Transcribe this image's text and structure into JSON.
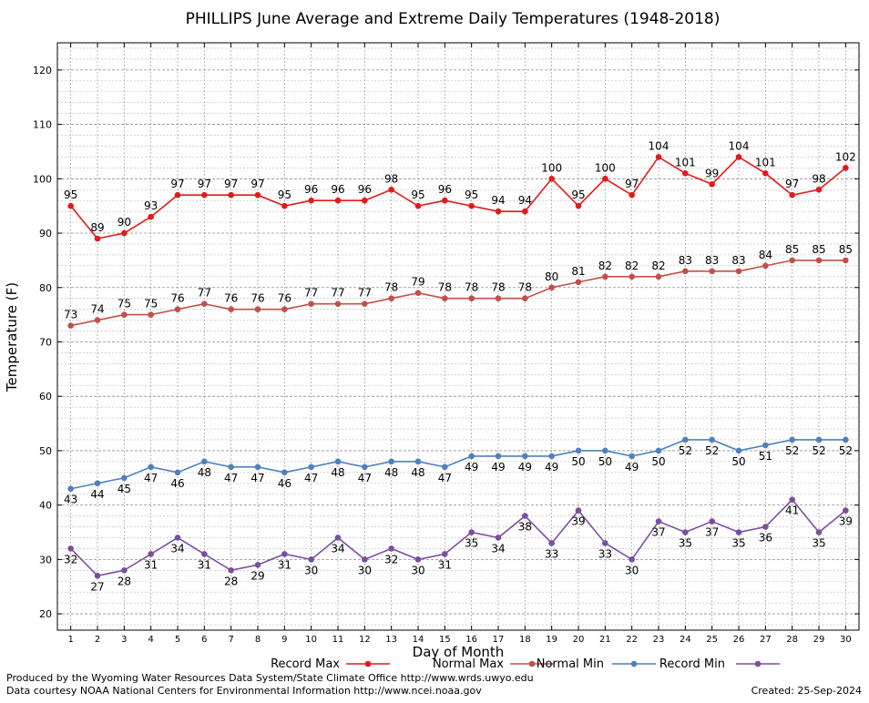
{
  "chart_data": {
    "type": "line",
    "title": "PHILLIPS June Average and Extreme Daily Temperatures (1948-2018)",
    "xlabel": "Day of Month",
    "ylabel": "Temperature (F)",
    "x": [
      1,
      2,
      3,
      4,
      5,
      6,
      7,
      8,
      9,
      10,
      11,
      12,
      13,
      14,
      15,
      16,
      17,
      18,
      19,
      20,
      21,
      22,
      23,
      24,
      25,
      26,
      27,
      28,
      29,
      30
    ],
    "xlim": [
      0.5,
      30.5
    ],
    "ylim": [
      17,
      125
    ],
    "yticks": [
      20,
      30,
      40,
      50,
      60,
      70,
      80,
      90,
      100,
      110,
      120
    ],
    "grid": true,
    "legend_position": "bottom",
    "series": [
      {
        "name": "Record Max",
        "color": "#e41a1c",
        "label_position": "above",
        "values": [
          95,
          89,
          90,
          93,
          97,
          97,
          97,
          97,
          95,
          96,
          96,
          96,
          98,
          95,
          96,
          95,
          94,
          94,
          100,
          95,
          100,
          97,
          104,
          101,
          99,
          104,
          101,
          97,
          98,
          102
        ]
      },
      {
        "name": "Normal Max",
        "color": "#c0504d",
        "label_position": "above",
        "values": [
          73,
          74,
          75,
          75,
          76,
          77,
          76,
          76,
          76,
          77,
          77,
          77,
          78,
          79,
          78,
          78,
          78,
          78,
          80,
          81,
          82,
          82,
          82,
          83,
          83,
          83,
          84,
          85,
          85,
          85
        ]
      },
      {
        "name": "Normal Min",
        "color": "#4f81bd",
        "label_position": "below",
        "values": [
          43,
          44,
          45,
          47,
          46,
          48,
          47,
          47,
          46,
          47,
          48,
          47,
          48,
          48,
          47,
          49,
          49,
          49,
          49,
          50,
          50,
          49,
          50,
          52,
          52,
          50,
          51,
          52,
          52,
          52
        ]
      },
      {
        "name": "Record Min",
        "color": "#7b4f9d",
        "label_position": "below",
        "values": [
          32,
          27,
          28,
          31,
          34,
          31,
          28,
          29,
          31,
          30,
          34,
          30,
          32,
          30,
          31,
          35,
          34,
          38,
          33,
          39,
          33,
          30,
          37,
          35,
          37,
          35,
          36,
          41,
          35,
          39
        ]
      }
    ]
  },
  "footer": {
    "credit_line_1": "Produced by the Wyoming Water Resources Data System/State Climate Office http://www.wrds.uwyo.edu",
    "credit_line_2": "Data courtesy NOAA National Centers for Environmental Information http://www.ncei.noaa.gov",
    "created": "Created:  25-Sep-2024"
  }
}
